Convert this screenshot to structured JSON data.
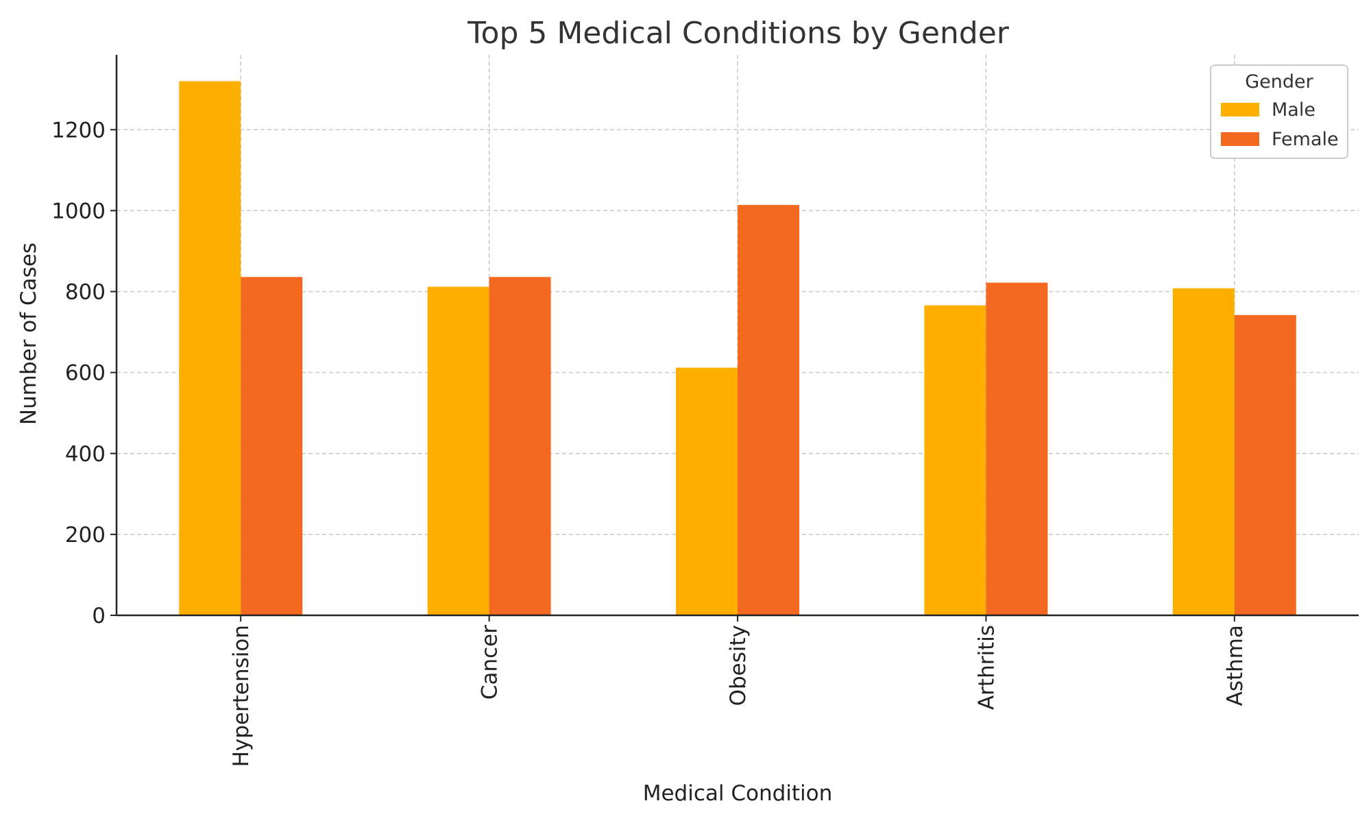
{
  "chart_data": {
    "type": "bar",
    "title": "Top 5 Medical Conditions by Gender",
    "xlabel": "Medical Condition",
    "ylabel": "Number of Cases",
    "categories": [
      "Hypertension",
      "Cancer",
      "Obesity",
      "Arthritis",
      "Asthma"
    ],
    "series": [
      {
        "name": "Male",
        "color": "#FFAF00",
        "values": [
          1320,
          812,
          612,
          766,
          808
        ]
      },
      {
        "name": "Female",
        "color": "#F46920",
        "values": [
          836,
          836,
          1014,
          822,
          742
        ]
      }
    ],
    "ylim": [
      0,
      1385
    ],
    "yticks": [
      0,
      200,
      400,
      600,
      800,
      1000,
      1200
    ],
    "grid": true,
    "legend": {
      "title": "Gender",
      "placement": "top-right"
    }
  }
}
